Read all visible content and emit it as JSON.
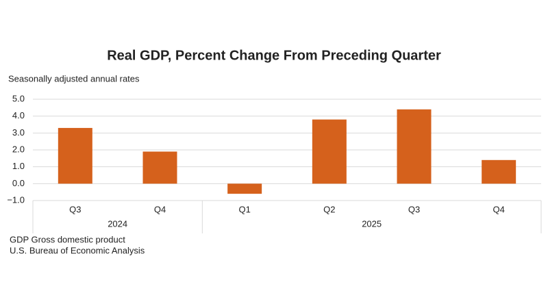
{
  "chart_data": {
    "type": "bar",
    "title": "Real GDP, Percent Change From Preceding Quarter",
    "subtitle": "Seasonally adjusted annual rates",
    "categories": [
      "Q3",
      "Q4",
      "Q1",
      "Q2",
      "Q3",
      "Q4"
    ],
    "groups": [
      {
        "label": "2024",
        "count": 2
      },
      {
        "label": "2025",
        "count": 4
      }
    ],
    "values": [
      3.3,
      1.9,
      -0.6,
      3.8,
      4.4,
      1.4
    ],
    "color": "#d5611c",
    "ylim": [
      -1,
      5
    ],
    "yticks": [
      {
        "value": -1,
        "label": "−1.0"
      },
      {
        "value": 0,
        "label": "0.0"
      },
      {
        "value": 1,
        "label": "1.0"
      },
      {
        "value": 2,
        "label": "2.0"
      },
      {
        "value": 3,
        "label": "3.0"
      },
      {
        "value": 4,
        "label": "4.0"
      },
      {
        "value": 5,
        "label": "5.0"
      }
    ],
    "grid": true,
    "notes": [
      "GDP Gross domestic product",
      "U.S. Bureau of Economic Analysis"
    ]
  }
}
